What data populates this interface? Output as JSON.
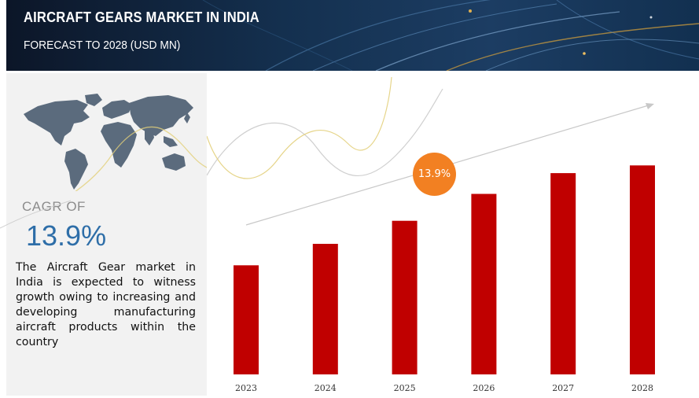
{
  "header": {
    "title": "AIRCRAFT GEARS MARKET IN INDIA",
    "subtitle": "FORECAST TO 2028 (USD MN)"
  },
  "summary": {
    "cagr_label": "CAGR OF",
    "cagr_value": "13.9%",
    "description": "The Aircraft Gear market in India is expected to witness growth owing to increasing and developing manufacturing aircraft products within the country"
  },
  "growth_badge": "13.9%",
  "colors": {
    "bar": "#c00000",
    "header": "#14304f",
    "badge": "#f28022",
    "cagr": "#2e6ea8"
  },
  "icons": [
    "world-map-icon",
    "trend-arrow-icon"
  ],
  "chart_data": {
    "type": "bar",
    "title": "",
    "xlabel": "",
    "ylabel": "",
    "categories": [
      "2023",
      "2024",
      "2025",
      "2026",
      "2027",
      "2028"
    ],
    "values": [
      142,
      170,
      200,
      235,
      262,
      272
    ],
    "ylim": [
      0,
      300
    ],
    "grid": false,
    "legend": "none",
    "y_axis_visible": false,
    "value_labels_visible": false
  }
}
